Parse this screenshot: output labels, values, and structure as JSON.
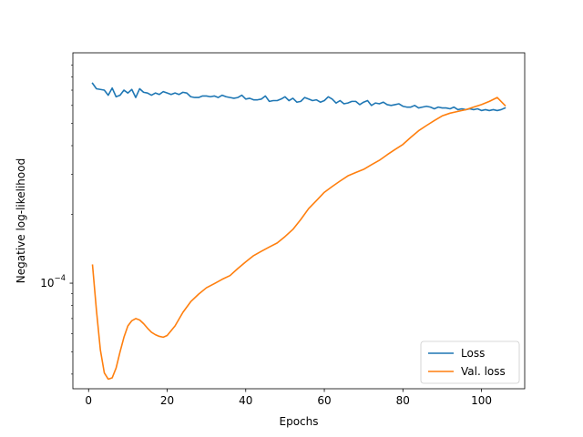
{
  "chart_data": {
    "type": "line",
    "title": "",
    "xlabel": "Epochs",
    "ylabel": "Negative log-likelihood",
    "yscale": "log",
    "xlim": [
      -4,
      111
    ],
    "ylim": [
      3.45e-05,
      0.00102
    ],
    "grid": false,
    "legend_position": "bottom-right",
    "x_ticks": [
      0,
      20,
      40,
      60,
      80,
      100
    ],
    "x_tick_labels": [
      "0",
      "20",
      "40",
      "60",
      "80",
      "100"
    ],
    "y_ticks": [
      0.0001
    ],
    "y_tick_labels": [
      "10",
      "−4"
    ],
    "series": [
      {
        "name": "Loss",
        "color": "#1f77b4",
        "x": [
          1,
          2,
          3,
          4,
          5,
          6,
          7,
          8,
          9,
          10,
          11,
          12,
          13,
          14,
          15,
          16,
          17,
          18,
          19,
          20,
          21,
          22,
          23,
          24,
          25,
          26,
          27,
          28,
          29,
          30,
          31,
          32,
          33,
          34,
          35,
          36,
          37,
          38,
          39,
          40,
          41,
          42,
          43,
          44,
          45,
          46,
          47,
          48,
          49,
          50,
          51,
          52,
          53,
          54,
          55,
          56,
          57,
          58,
          59,
          60,
          61,
          62,
          63,
          64,
          65,
          66,
          67,
          68,
          69,
          70,
          71,
          72,
          73,
          74,
          75,
          76,
          77,
          78,
          79,
          80,
          81,
          82,
          83,
          84,
          85,
          86,
          87,
          88,
          89,
          90,
          91,
          92,
          93,
          94,
          95,
          96,
          97,
          98,
          99,
          100,
          101,
          102,
          103,
          104,
          105,
          106
        ],
        "values": [
          0.00075,
          0.00071,
          0.000705,
          0.0007,
          0.000665,
          0.000715,
          0.000655,
          0.000665,
          0.0007,
          0.00068,
          0.000705,
          0.00065,
          0.00071,
          0.000685,
          0.00068,
          0.000665,
          0.00068,
          0.00067,
          0.00069,
          0.00068,
          0.00067,
          0.00068,
          0.00067,
          0.000685,
          0.00068,
          0.000655,
          0.00065,
          0.00065,
          0.00066,
          0.00066,
          0.000655,
          0.00066,
          0.00065,
          0.000665,
          0.000655,
          0.00065,
          0.000645,
          0.00065,
          0.000665,
          0.00064,
          0.000645,
          0.000635,
          0.000635,
          0.00064,
          0.00066,
          0.000625,
          0.00063,
          0.00063,
          0.00064,
          0.000655,
          0.00063,
          0.000645,
          0.00062,
          0.000625,
          0.00065,
          0.00064,
          0.00063,
          0.000635,
          0.00062,
          0.00063,
          0.000655,
          0.00064,
          0.000615,
          0.00063,
          0.00061,
          0.000615,
          0.000625,
          0.000625,
          0.000605,
          0.00062,
          0.00063,
          0.0006,
          0.000615,
          0.00061,
          0.00062,
          0.000605,
          0.0006,
          0.000605,
          0.00061,
          0.000595,
          0.00059,
          0.00059,
          0.0006,
          0.000585,
          0.00059,
          0.000595,
          0.00059,
          0.00058,
          0.00059,
          0.000585,
          0.000585,
          0.00058,
          0.00059,
          0.000575,
          0.00058,
          0.000575,
          0.00058,
          0.000575,
          0.00058,
          0.00057,
          0.000575,
          0.00057,
          0.000575,
          0.00057,
          0.000575,
          0.000585
        ]
      },
      {
        "name": "Val. loss",
        "color": "#ff7f0e",
        "x": [
          1,
          2,
          3,
          4,
          5,
          6,
          7,
          8,
          9,
          10,
          11,
          12,
          13,
          14,
          15,
          16,
          17,
          18,
          19,
          20,
          22,
          24,
          26,
          28,
          30,
          32,
          34,
          36,
          38,
          40,
          42,
          44,
          46,
          48,
          50,
          52,
          54,
          56,
          58,
          60,
          62,
          64,
          66,
          68,
          70,
          72,
          74,
          76,
          78,
          80,
          82,
          84,
          86,
          88,
          90,
          92,
          94,
          96,
          98,
          100,
          102,
          104,
          106
        ],
        "values": [
          0.00012,
          7.6e-05,
          5.1e-05,
          4.05e-05,
          3.8e-05,
          3.85e-05,
          4.25e-05,
          5e-05,
          5.8e-05,
          6.5e-05,
          6.85e-05,
          7e-05,
          6.9e-05,
          6.65e-05,
          6.35e-05,
          6.1e-05,
          5.95e-05,
          5.85e-05,
          5.8e-05,
          5.9e-05,
          6.5e-05,
          7.45e-05,
          8.3e-05,
          8.95e-05,
          9.55e-05,
          9.95e-05,
          0.000104,
          0.000108,
          0.000116,
          0.000124,
          0.000132,
          0.000138,
          0.000144,
          0.00015,
          0.00016,
          0.000172,
          0.00019,
          0.000212,
          0.00023,
          0.00025,
          0.000265,
          0.00028,
          0.000295,
          0.000305,
          0.000315,
          0.00033,
          0.000345,
          0.000365,
          0.000385,
          0.000405,
          0.000435,
          0.000465,
          0.00049,
          0.000515,
          0.00054,
          0.000555,
          0.000565,
          0.000575,
          0.00059,
          0.000605,
          0.000625,
          0.00065,
          0.0006
        ]
      }
    ]
  }
}
